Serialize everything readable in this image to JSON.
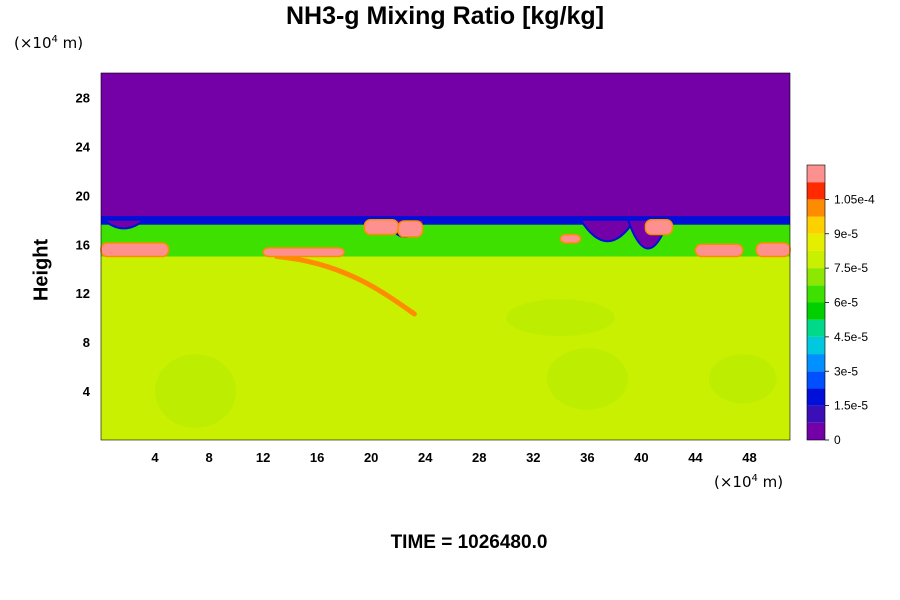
{
  "chart_data": {
    "type": "heatmap",
    "title": "NH3-g Mixing Ratio [kg/kg]",
    "ylabel": "Height",
    "xlabel": "",
    "x_unit_label": {
      "prefix": "(×10",
      "exp": "4",
      "suffix": " m)"
    },
    "y_unit_label": {
      "prefix": "(×10",
      "exp": "4",
      "suffix": " m)"
    },
    "xlim": [
      0,
      51
    ],
    "ylim": [
      0,
      30
    ],
    "x_ticks": [
      4,
      8,
      12,
      16,
      20,
      24,
      28,
      32,
      36,
      40,
      44,
      48
    ],
    "y_ticks": [
      4,
      8,
      12,
      16,
      20,
      24,
      28
    ],
    "time_label": "TIME = 1026480.0",
    "colorbar": {
      "levels": [
        0,
        7.5e-06,
        1.5e-05,
        2.25e-05,
        3e-05,
        3.75e-05,
        4.5e-05,
        5.25e-05,
        6e-05,
        6.75e-05,
        7.5e-05,
        8.25e-05,
        9e-05,
        9.75e-05,
        0.000105,
        0.0001125
      ],
      "tick_labels": [
        "0",
        "1.5e-5",
        "3e-5",
        "4.5e-5",
        "6e-5",
        "7.5e-5",
        "9e-5",
        "1.05e-4"
      ],
      "colors": [
        "#7400a8",
        "#3a0fb8",
        "#0010d8",
        "#0050ff",
        "#0090ff",
        "#00c8e0",
        "#00d88a",
        "#00d000",
        "#3ee000",
        "#8ce800",
        "#c8f000",
        "#e6ee00",
        "#ffd000",
        "#ff8c00",
        "#ff2a00",
        "#ff9090"
      ]
    },
    "regions": {
      "upper_layer_value": 0,
      "upper_layer_height_range": [
        18,
        30
      ],
      "band_value": 6e-05,
      "band_height_range": [
        15,
        18
      ],
      "lower_layer_value": 8e-05,
      "lower_layer_height_range": [
        0,
        14.5
      ],
      "high_value_patches_value": 0.0001125
    }
  }
}
